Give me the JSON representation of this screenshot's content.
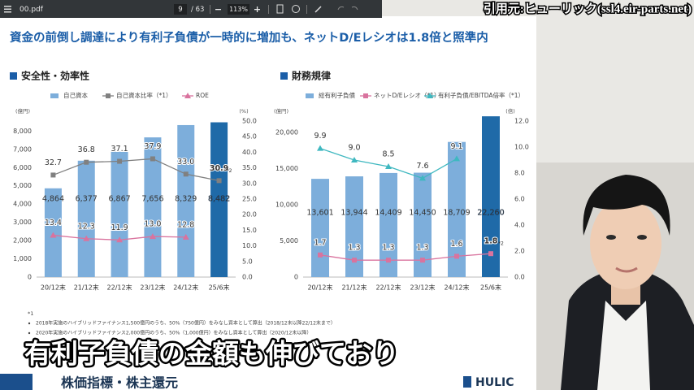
{
  "viewer": {
    "file_name": "00.pdf",
    "page": "9",
    "page_count": "/ 63",
    "zoom": "113%"
  },
  "citation": "引用元:ヒューリック(ssl4.eir-parts.net)",
  "slide_title": "資金の前倒し調達により有利子負債が一時的に増加も、ネットD/Eレシオは1.8倍と照準内",
  "footnotes": {
    "marker": "*1",
    "items": [
      "2018年実施のハイブリッドファイナンス1,500億円のうち、50%（750億円）をみなし資本として算出（2018/12末以降22/12末まで）",
      "2020年実施のハイブリッドファイナンス2,000億円のうち、50%（1,000億円）をみなし資本として算出（2020/12末以降）"
    ]
  },
  "next_section": "株価指標・株主還元",
  "logo": "HULIC",
  "caption": "有利子負債の金額も伸びており",
  "chart_data": [
    {
      "type": "bar",
      "title": "安全性・効率性",
      "ylabel": "(億円)",
      "y2label": "(%)",
      "annotation": "*2",
      "categories": [
        "20/12末",
        "21/12末",
        "22/12末",
        "23/12末",
        "24/12末",
        "25/6末"
      ],
      "ylim": [
        0,
        8550
      ],
      "yticks": [
        0,
        {
          "value": 1000,
          "label": "1,000"
        },
        {
          "value": 2000,
          "label": "2,000"
        },
        {
          "value": 3000,
          "label": "3,000"
        },
        {
          "value": 4000,
          "label": "4,000"
        },
        {
          "value": 5000,
          "label": "5,000"
        },
        {
          "value": 6000,
          "label": "6,000"
        },
        {
          "value": 7000,
          "label": "7,000"
        },
        {
          "value": 8000,
          "label": "8,000"
        }
      ],
      "y2lim": [
        0,
        50
      ],
      "y2ticks": [
        {
          "value": 0,
          "label": "0.0"
        },
        {
          "value": 5,
          "label": "5.0"
        },
        {
          "value": 10,
          "label": "10.0"
        },
        {
          "value": 15,
          "label": "15.0"
        },
        {
          "value": 20,
          "label": "20.0"
        },
        {
          "value": 25,
          "label": "25.0"
        },
        {
          "value": 30,
          "label": "30.0"
        },
        {
          "value": 35,
          "label": "35.0"
        },
        {
          "value": 40,
          "label": "40.0"
        },
        {
          "value": 45,
          "label": "45.0"
        },
        {
          "value": 50,
          "label": "50.0"
        }
      ],
      "series": [
        {
          "name": "自己資本",
          "kind": "bar",
          "color": "#7daedb",
          "colors": [
            "#7daedb",
            "#7daedb",
            "#7daedb",
            "#7daedb",
            "#7daedb",
            "#1f6aa8"
          ],
          "values": [
            4864,
            6377,
            6867,
            7656,
            8329,
            8482
          ],
          "value_labels": [
            "4,864",
            "6,377",
            "6,867",
            "7,656",
            "8,329",
            "8,482"
          ]
        },
        {
          "name": "自己資本比率（*1）",
          "kind": "line",
          "axis": "y2",
          "color": "#808080",
          "marker": "square",
          "values": [
            32.7,
            36.8,
            37.1,
            37.9,
            33.0,
            30.9
          ],
          "value_labels": [
            "32.7",
            "36.8",
            "37.1",
            "37.9",
            "33.0",
            "30.9"
          ]
        },
        {
          "name": "ROE",
          "kind": "line",
          "axis": "y2",
          "color": "#d9739e",
          "marker": "triangle",
          "values": [
            13.4,
            12.3,
            11.9,
            13.0,
            12.8,
            null
          ],
          "value_labels": [
            "13.4",
            "12.3",
            "11.9",
            "13.0",
            "12.8",
            null
          ]
        }
      ]
    },
    {
      "type": "bar",
      "title": "財務規律",
      "ylabel": "(億円)",
      "y2label": "(倍)",
      "annotation": "*2",
      "categories": [
        "20/12末",
        "21/12末",
        "22/12末",
        "23/12末",
        "24/12末",
        "25/6末"
      ],
      "ylim": [
        0,
        21600
      ],
      "yticks": [
        0,
        {
          "value": 5000,
          "label": "5,000"
        },
        {
          "value": 10000,
          "label": "10,000"
        },
        {
          "value": 15000,
          "label": "15,000"
        },
        {
          "value": 20000,
          "label": "20,000"
        }
      ],
      "y2lim": [
        0,
        12
      ],
      "y2ticks": [
        {
          "value": 0,
          "label": "0.0"
        },
        {
          "value": 2,
          "label": "2.0"
        },
        {
          "value": 4,
          "label": "4.0"
        },
        {
          "value": 6,
          "label": "6.0"
        },
        {
          "value": 8,
          "label": "8.0"
        },
        {
          "value": 10,
          "label": "10.0"
        },
        {
          "value": 12,
          "label": "12.0"
        }
      ],
      "series": [
        {
          "name": "総有利子負債",
          "kind": "bar",
          "color": "#7daedb",
          "colors": [
            "#7daedb",
            "#7daedb",
            "#7daedb",
            "#7daedb",
            "#7daedb",
            "#1f6aa8"
          ],
          "values": [
            13601,
            13944,
            14409,
            14450,
            18709,
            22260
          ],
          "value_labels": [
            "13,601",
            "13,944",
            "14,409",
            "14,450",
            "18,709",
            "22,260"
          ]
        },
        {
          "name": "ネットD/Eレシオ（*1）",
          "kind": "line",
          "axis": "y2",
          "color": "#d9739e",
          "marker": "square",
          "values": [
            1.7,
            1.3,
            1.3,
            1.3,
            1.6,
            1.8
          ],
          "value_labels": [
            "1.7",
            "1.3",
            "1.3",
            "1.3",
            "1.6",
            "1.8"
          ]
        },
        {
          "name": "有利子負債/EBITDA倍率（*1）",
          "kind": "line",
          "axis": "y2",
          "color": "#3fb8c0",
          "marker": "triangle",
          "values": [
            9.9,
            9.0,
            8.5,
            7.6,
            9.1,
            null
          ],
          "value_labels": [
            "9.9",
            "9.0",
            "8.5",
            "7.6",
            "9.1",
            null
          ]
        }
      ]
    }
  ]
}
